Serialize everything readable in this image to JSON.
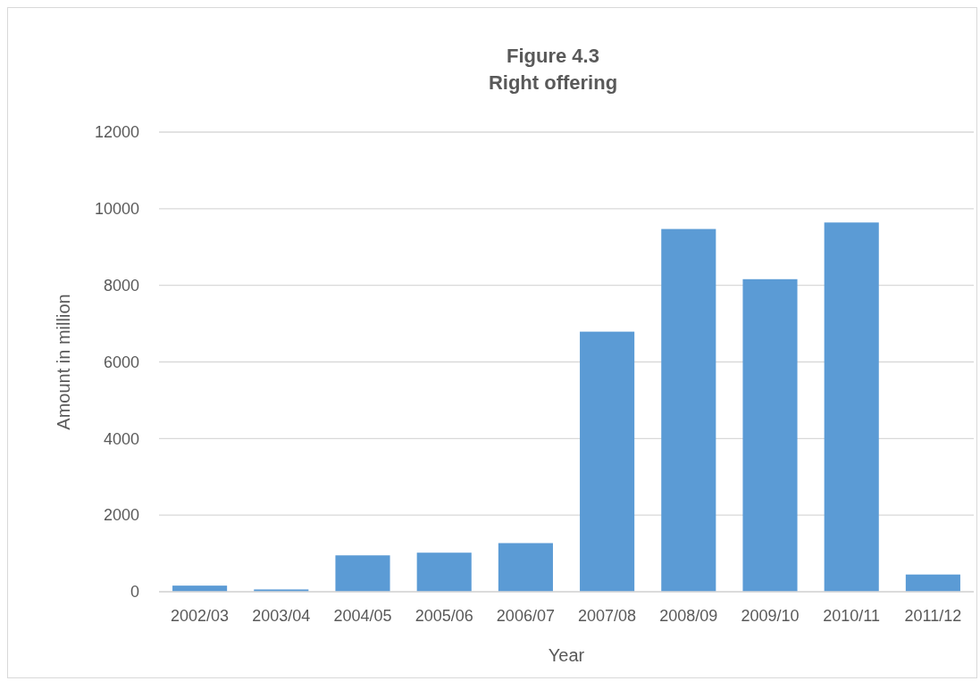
{
  "chart_data": {
    "type": "bar",
    "title": "Figure 4.3\nRight offering",
    "xlabel": "Year",
    "ylabel": "Amount in million",
    "categories": [
      "2002/03",
      "2003/04",
      "2004/05",
      "2005/06",
      "2006/07",
      "2007/08",
      "2008/09",
      "2009/10",
      "2010/11",
      "2011/12"
    ],
    "values": [
      160,
      60,
      950,
      1020,
      1270,
      6790,
      9470,
      8160,
      9640,
      450
    ],
    "color": "#5b9bd5",
    "ylim": [
      0,
      12000
    ],
    "yticks": [
      0,
      2000,
      4000,
      6000,
      8000,
      10000,
      12000
    ],
    "grid": "y"
  }
}
